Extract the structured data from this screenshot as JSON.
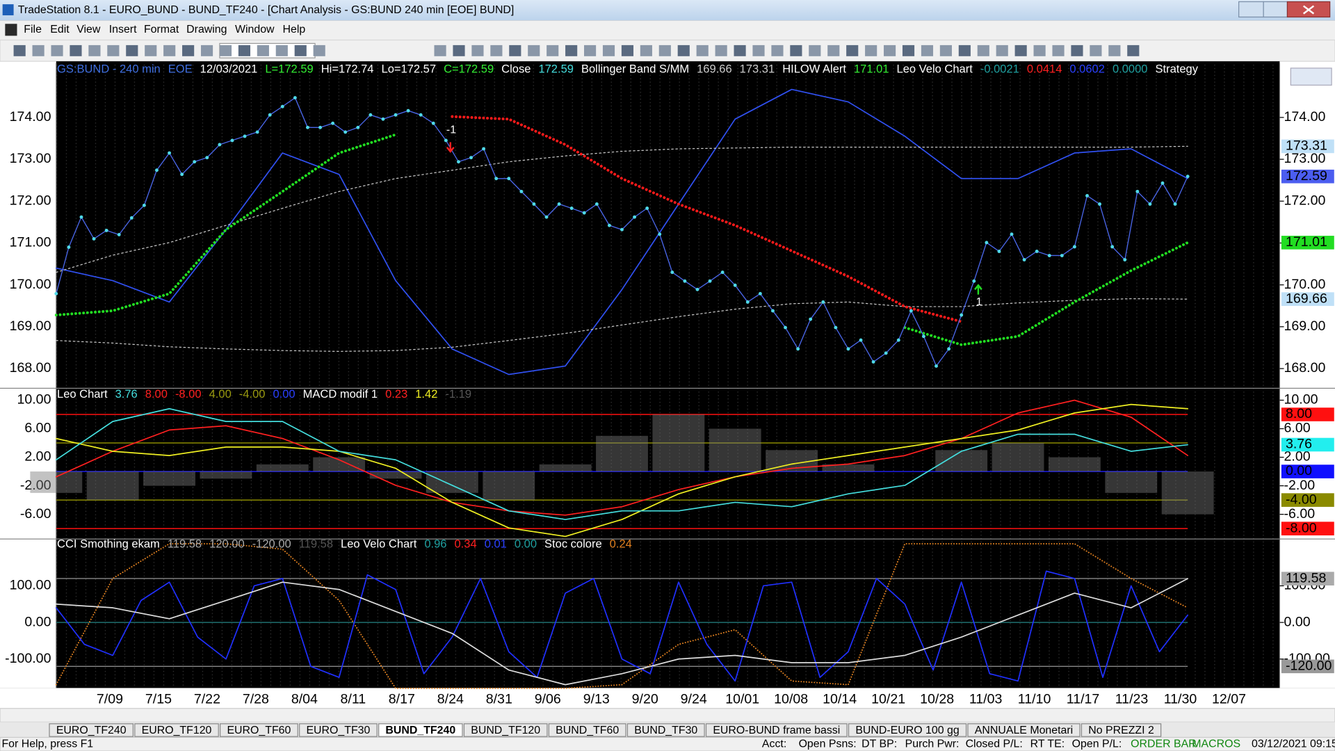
{
  "window": {
    "title": "TradeStation 8.1 - EURO_BUND - BUND_TF240 - [Chart Analysis - GS:BUND  240 min  [EOE] BUND]"
  },
  "menu": [
    "File",
    "Edit",
    "View",
    "Insert",
    "Format",
    "Drawing",
    "Window",
    "Help"
  ],
  "chart_data": [
    {
      "type": "line",
      "header": [
        {
          "text": "GS:BUND - 240 min",
          "color": "#3f6fe0"
        },
        {
          "text": "EOE",
          "color": "#3f6fe0"
        },
        {
          "text": "12/03/2021",
          "color": "#ffffff"
        },
        {
          "text": "L=172.59",
          "color": "#33ee33"
        },
        {
          "text": "Hi=172.74",
          "color": "#ffffff"
        },
        {
          "text": "Lo=172.57",
          "color": "#ffffff"
        },
        {
          "text": "C=172.59",
          "color": "#33ee33"
        },
        {
          "text": "Close",
          "color": "#ffffff"
        },
        {
          "text": "172.59",
          "color": "#44dddd"
        },
        {
          "text": "Bollinger Band S/MM",
          "color": "#ffffff"
        },
        {
          "text": "169.66",
          "color": "#cccccc"
        },
        {
          "text": "173.31",
          "color": "#cccccc"
        },
        {
          "text": "HILOW Alert",
          "color": "#ffffff"
        },
        {
          "text": "171.01",
          "color": "#33ee33"
        },
        {
          "text": "Leo Velo Chart",
          "color": "#ffffff"
        },
        {
          "text": "-0.0021",
          "color": "#1fa0a0"
        },
        {
          "text": "0.0414",
          "color": "#ff2020"
        },
        {
          "text": "0.0602",
          "color": "#2a40ff"
        },
        {
          "text": "0.0000",
          "color": "#1fa0a0"
        },
        {
          "text": "Strategy",
          "color": "#ffffff"
        }
      ],
      "ylim": [
        167.55,
        175.3
      ],
      "yticks": [
        {
          "value": 168,
          "label": "168.00"
        },
        {
          "value": 169,
          "label": "169.00"
        },
        {
          "value": 170,
          "label": "170.00"
        },
        {
          "value": 171,
          "label": "171.00"
        },
        {
          "value": 172,
          "label": "172.00"
        },
        {
          "value": 173,
          "label": "173.00"
        },
        {
          "value": 174,
          "label": "174.00"
        }
      ],
      "series": [
        {
          "color": "#3050f0",
          "style": "line",
          "values": [
            170.4,
            170.1,
            169.59,
            171.32,
            173.15,
            172.64,
            170.1,
            168.47,
            167.86,
            168.06,
            169.89,
            171.93,
            173.96,
            174.67,
            174.37,
            173.55,
            172.54,
            172.54,
            173.15,
            173.25,
            172.54
          ]
        },
        {
          "color": "#c8c8c8",
          "style": "thin",
          "values": [
            170.3,
            170.71,
            171.01,
            171.42,
            171.83,
            172.23,
            172.54,
            172.74,
            172.94,
            173.08,
            173.19,
            173.25,
            173.27,
            173.29,
            173.29,
            173.29,
            173.29,
            173.29,
            173.29,
            173.29,
            173.31
          ]
        },
        {
          "color": "#c8c8c8",
          "style": "thin",
          "values": [
            168.67,
            168.61,
            168.52,
            168.47,
            168.43,
            168.41,
            168.43,
            168.51,
            168.67,
            168.84,
            169.04,
            169.24,
            169.42,
            169.55,
            169.59,
            169.48,
            169.48,
            169.57,
            169.63,
            169.67,
            169.66
          ]
        },
        {
          "color": "#ff1a1a",
          "style": "dots",
          "values": [
            null,
            null,
            null,
            null,
            null,
            null,
            null,
            174.02,
            173.96,
            173.35,
            172.54,
            171.93,
            171.42,
            170.81,
            170.2,
            169.48,
            169.12,
            null,
            null,
            null,
            null
          ]
        },
        {
          "color": "#22dd22",
          "style": "dots",
          "values": [
            169.28,
            169.38,
            169.79,
            171.32,
            172.23,
            173.15,
            173.59,
            null,
            null,
            null,
            null,
            null,
            null,
            null,
            null,
            168.98,
            168.57,
            168.77,
            169.59,
            170.34,
            171.01
          ]
        },
        {
          "color": "#4fd9e8",
          "style": "price",
          "values": [
            169.79,
            170.9,
            171.62,
            171.1,
            171.3,
            171.2,
            171.6,
            171.9,
            172.74,
            173.15,
            172.64,
            172.94,
            173.04,
            173.35,
            173.45,
            173.55,
            173.65,
            174.06,
            174.26,
            174.47,
            173.76,
            173.76,
            173.86,
            173.65,
            173.76,
            174.06,
            173.96,
            174.06,
            174.16,
            174.06,
            173.86,
            173.45,
            172.94,
            173.04,
            173.25,
            172.54,
            172.54,
            172.23,
            171.93,
            171.62,
            171.93,
            171.83,
            171.72,
            171.93,
            171.42,
            171.32,
            171.62,
            171.83,
            171.21,
            170.3,
            170.09,
            169.89,
            170.09,
            170.3,
            169.99,
            169.59,
            169.79,
            169.38,
            168.98,
            168.47,
            169.18,
            169.59,
            168.98,
            168.47,
            168.68,
            168.16,
            168.37,
            168.68,
            169.38,
            168.77,
            168.06,
            168.47,
            169.28,
            170.09,
            171.01,
            170.8,
            171.21,
            170.6,
            170.8,
            170.7,
            170.7,
            170.91,
            172.13,
            171.93,
            170.91,
            170.6,
            172.23,
            171.93,
            172.43,
            171.93,
            172.59
          ]
        }
      ],
      "markers": [
        {
          "value": 173.31,
          "label": "173.31",
          "background": "#bfe0f7",
          "color": "#000000"
        },
        {
          "value": 172.59,
          "label": "172.59",
          "background": "#4b5df0",
          "color": "#ffffff"
        },
        {
          "value": 171.01,
          "label": "171.01",
          "background": "#22dd22",
          "color": "#000000"
        },
        {
          "value": 169.66,
          "label": "169.66",
          "background": "#bfe0f7",
          "color": "#000000"
        }
      ],
      "annotations": [
        {
          "text": "-1",
          "color": "#ffffff",
          "arrow_color": "#ff2020"
        },
        {
          "text": "1",
          "color": "#ffffff",
          "arrow_color": "#22dd22"
        }
      ]
    },
    {
      "type": "line",
      "header": [
        {
          "text": "Leo Chart",
          "color": "#ffffff"
        },
        {
          "text": "3.76",
          "color": "#44dddd"
        },
        {
          "text": "8.00",
          "color": "#ff2020"
        },
        {
          "text": "-8.00",
          "color": "#ff2020"
        },
        {
          "text": "4.00",
          "color": "#9a9a10"
        },
        {
          "text": "-4.00",
          "color": "#9a9a10"
        },
        {
          "text": "0.00",
          "color": "#2a40ff"
        },
        {
          "text": "MACD modif 1",
          "color": "#ffffff"
        },
        {
          "text": "0.23",
          "color": "#ff2020"
        },
        {
          "text": "1.42",
          "color": "#eeee22"
        },
        {
          "text": "-1.19",
          "color": "#555555"
        }
      ],
      "ylim": [
        -9.34,
        11.55
      ],
      "yticks": [
        {
          "value": -6,
          "label": "-6.00"
        },
        {
          "value": -2,
          "label": "-2.00"
        },
        {
          "value": 2,
          "label": "2.00"
        },
        {
          "value": 6,
          "label": "6.00"
        },
        {
          "value": 10,
          "label": "10.00"
        }
      ],
      "reference_lines": [
        {
          "value": 8,
          "color": "#ff1010"
        },
        {
          "value": -8,
          "color": "#ff1010"
        },
        {
          "value": 4,
          "color": "#8a8a00"
        },
        {
          "value": -4,
          "color": "#8a8a00"
        },
        {
          "value": 0,
          "color": "#2020ff"
        }
      ],
      "bars": {
        "color": "#777777",
        "values": [
          -3,
          -4,
          -2,
          -1,
          1,
          2,
          -1,
          -3,
          -4,
          1,
          5,
          8,
          6,
          3,
          1,
          0,
          3,
          4,
          2,
          -3,
          -6
        ]
      },
      "series": [
        {
          "color": "#ff2020",
          "style": "line",
          "values": [
            -0.75,
            2.84,
            5.82,
            6.42,
            4.63,
            1.64,
            -1.94,
            -4.33,
            -5.52,
            -6.12,
            -4.93,
            -2.54,
            -0.75,
            0.45,
            1.04,
            2.24,
            4.63,
            8.21,
            10.0,
            7.61,
            2.24
          ]
        },
        {
          "color": "#eeee22",
          "style": "line",
          "values": [
            4.63,
            2.84,
            2.24,
            3.43,
            3.43,
            2.84,
            0.45,
            -4.33,
            -7.91,
            -9.1,
            -6.72,
            -3.13,
            -0.75,
            1.04,
            2.24,
            3.43,
            4.63,
            5.82,
            8.21,
            9.4,
            8.81
          ]
        },
        {
          "color": "#44dddd",
          "style": "line",
          "values": [
            1.64,
            7.01,
            8.81,
            7.01,
            7.01,
            2.84,
            1.64,
            -1.94,
            -5.52,
            -6.72,
            -5.52,
            -5.52,
            -4.33,
            -4.93,
            -3.13,
            -1.94,
            2.84,
            5.22,
            5.22,
            2.84,
            3.76
          ]
        }
      ],
      "markers": [
        {
          "value": 8,
          "label": "8.00",
          "background": "#ff1010",
          "color": "#ffffff"
        },
        {
          "value": 3.76,
          "label": "3.76",
          "background": "#22eeee",
          "color": "#000000"
        },
        {
          "value": 0,
          "label": "0.00",
          "background": "#1010ff",
          "color": "#3050ff"
        },
        {
          "value": -4,
          "label": "-4.00",
          "background": "#8a8a00",
          "color": "#000000"
        },
        {
          "value": -8,
          "label": "-8.00",
          "background": "#ff1010",
          "color": "#ffffff"
        }
      ]
    },
    {
      "type": "line",
      "header": [
        {
          "text": "CCI Smothing ekam",
          "color": "#ffffff"
        },
        {
          "text": "119.58",
          "color": "#aaaaaa"
        },
        {
          "text": "120.00",
          "color": "#aaaaaa"
        },
        {
          "text": "-120.00",
          "color": "#aaaaaa"
        },
        {
          "text": "119.58",
          "color": "#555555"
        },
        {
          "text": "Leo Velo Chart",
          "color": "#ffffff"
        },
        {
          "text": "0.96",
          "color": "#1fa0a0"
        },
        {
          "text": "0.34",
          "color": "#ff2020"
        },
        {
          "text": "0.01",
          "color": "#2a40ff"
        },
        {
          "text": "0.00",
          "color": "#1fa0a0"
        },
        {
          "text": "Stoc colore",
          "color": "#ffffff"
        },
        {
          "text": "0.24",
          "color": "#e08020"
        }
      ],
      "ylim": [
        -179,
        225.6
      ],
      "yticks": [
        {
          "value": -100,
          "label": "-100.00"
        },
        {
          "value": 0,
          "label": "0.00"
        },
        {
          "value": 100,
          "label": "100.00"
        }
      ],
      "reference_lines": [
        {
          "value": 120,
          "color": "#888888"
        },
        {
          "value": -120,
          "color": "#888888"
        },
        {
          "value": 0,
          "color": "#1f6f6f"
        }
      ],
      "series": [
        {
          "color": "#e08020",
          "style": "fine-dots",
          "values": [
            -170,
            120,
            215,
            215,
            200,
            60,
            -180,
            -180,
            -180,
            -180,
            -170,
            -60,
            -20,
            -160,
            -170,
            215,
            215,
            215,
            215,
            120,
            40
          ]
        },
        {
          "color": "#2030ff",
          "style": "line",
          "values": [
            40,
            -60,
            -90,
            60,
            110,
            -40,
            -100,
            100,
            120,
            -120,
            -150,
            130,
            90,
            -140,
            -40,
            120,
            -80,
            -150,
            80,
            120,
            -100,
            -140,
            110,
            -60,
            -160,
            100,
            110,
            -150,
            -80,
            120,
            50,
            -130,
            110,
            -140,
            -160,
            140,
            120,
            -150,
            100,
            -80,
            20
          ]
        },
        {
          "color": "#dddddd",
          "style": "line",
          "values": [
            50,
            40,
            10,
            60,
            110,
            90,
            30,
            -30,
            -130,
            -170,
            -140,
            -100,
            -90,
            -110,
            -110,
            -90,
            -40,
            20,
            80,
            40,
            119.58
          ]
        }
      ],
      "markers": [
        {
          "value": 119.58,
          "label": "119.58",
          "background": "#aaaaaa",
          "color": "#000000"
        },
        {
          "value": -120,
          "label": "-120.00",
          "background": "#999999",
          "color": "#000000"
        }
      ]
    }
  ],
  "x_labels": [
    "7/09",
    "7/15",
    "7/22",
    "7/28",
    "8/04",
    "8/11",
    "8/17",
    "8/24",
    "8/31",
    "9/06",
    "9/13",
    "9/20",
    "9/24",
    "10/01",
    "10/08",
    "10/14",
    "10/21",
    "10/28",
    "11/03",
    "11/10",
    "11/17",
    "11/23",
    "11/30",
    "12/07"
  ],
  "tabs": [
    "EURO_TF240",
    "EURO_TF120",
    "EURO_TF60",
    "EURO_TF30",
    "BUND_TF240",
    "BUND_TF120",
    "BUND_TF60",
    "BUND_TF30",
    "EURO-BUND frame bassi",
    "BUND-EURO 100 gg",
    "ANNUALE Monetari",
    "No PREZZI 2"
  ],
  "active_tab": 4,
  "status_bar": [
    {
      "text": "For Help, press F1",
      "color": "#000000"
    },
    {
      "text": "Acct:",
      "color": "#000000"
    },
    {
      "text": "Open Psns:",
      "color": "#000000"
    },
    {
      "text": "DT BP:",
      "color": "#000000"
    },
    {
      "text": "Purch Pwr:",
      "color": "#000000"
    },
    {
      "text": "Closed P/L:",
      "color": "#000000"
    },
    {
      "text": "RT TE:",
      "color": "#000000"
    },
    {
      "text": "Open P/L:",
      "color": "#000000"
    },
    {
      "text": "ORDER BAR",
      "color": "#118811"
    },
    {
      "text": "MACROS",
      "color": "#118811"
    },
    {
      "text": "03/12/2021 09:15",
      "color": "#000000"
    }
  ]
}
